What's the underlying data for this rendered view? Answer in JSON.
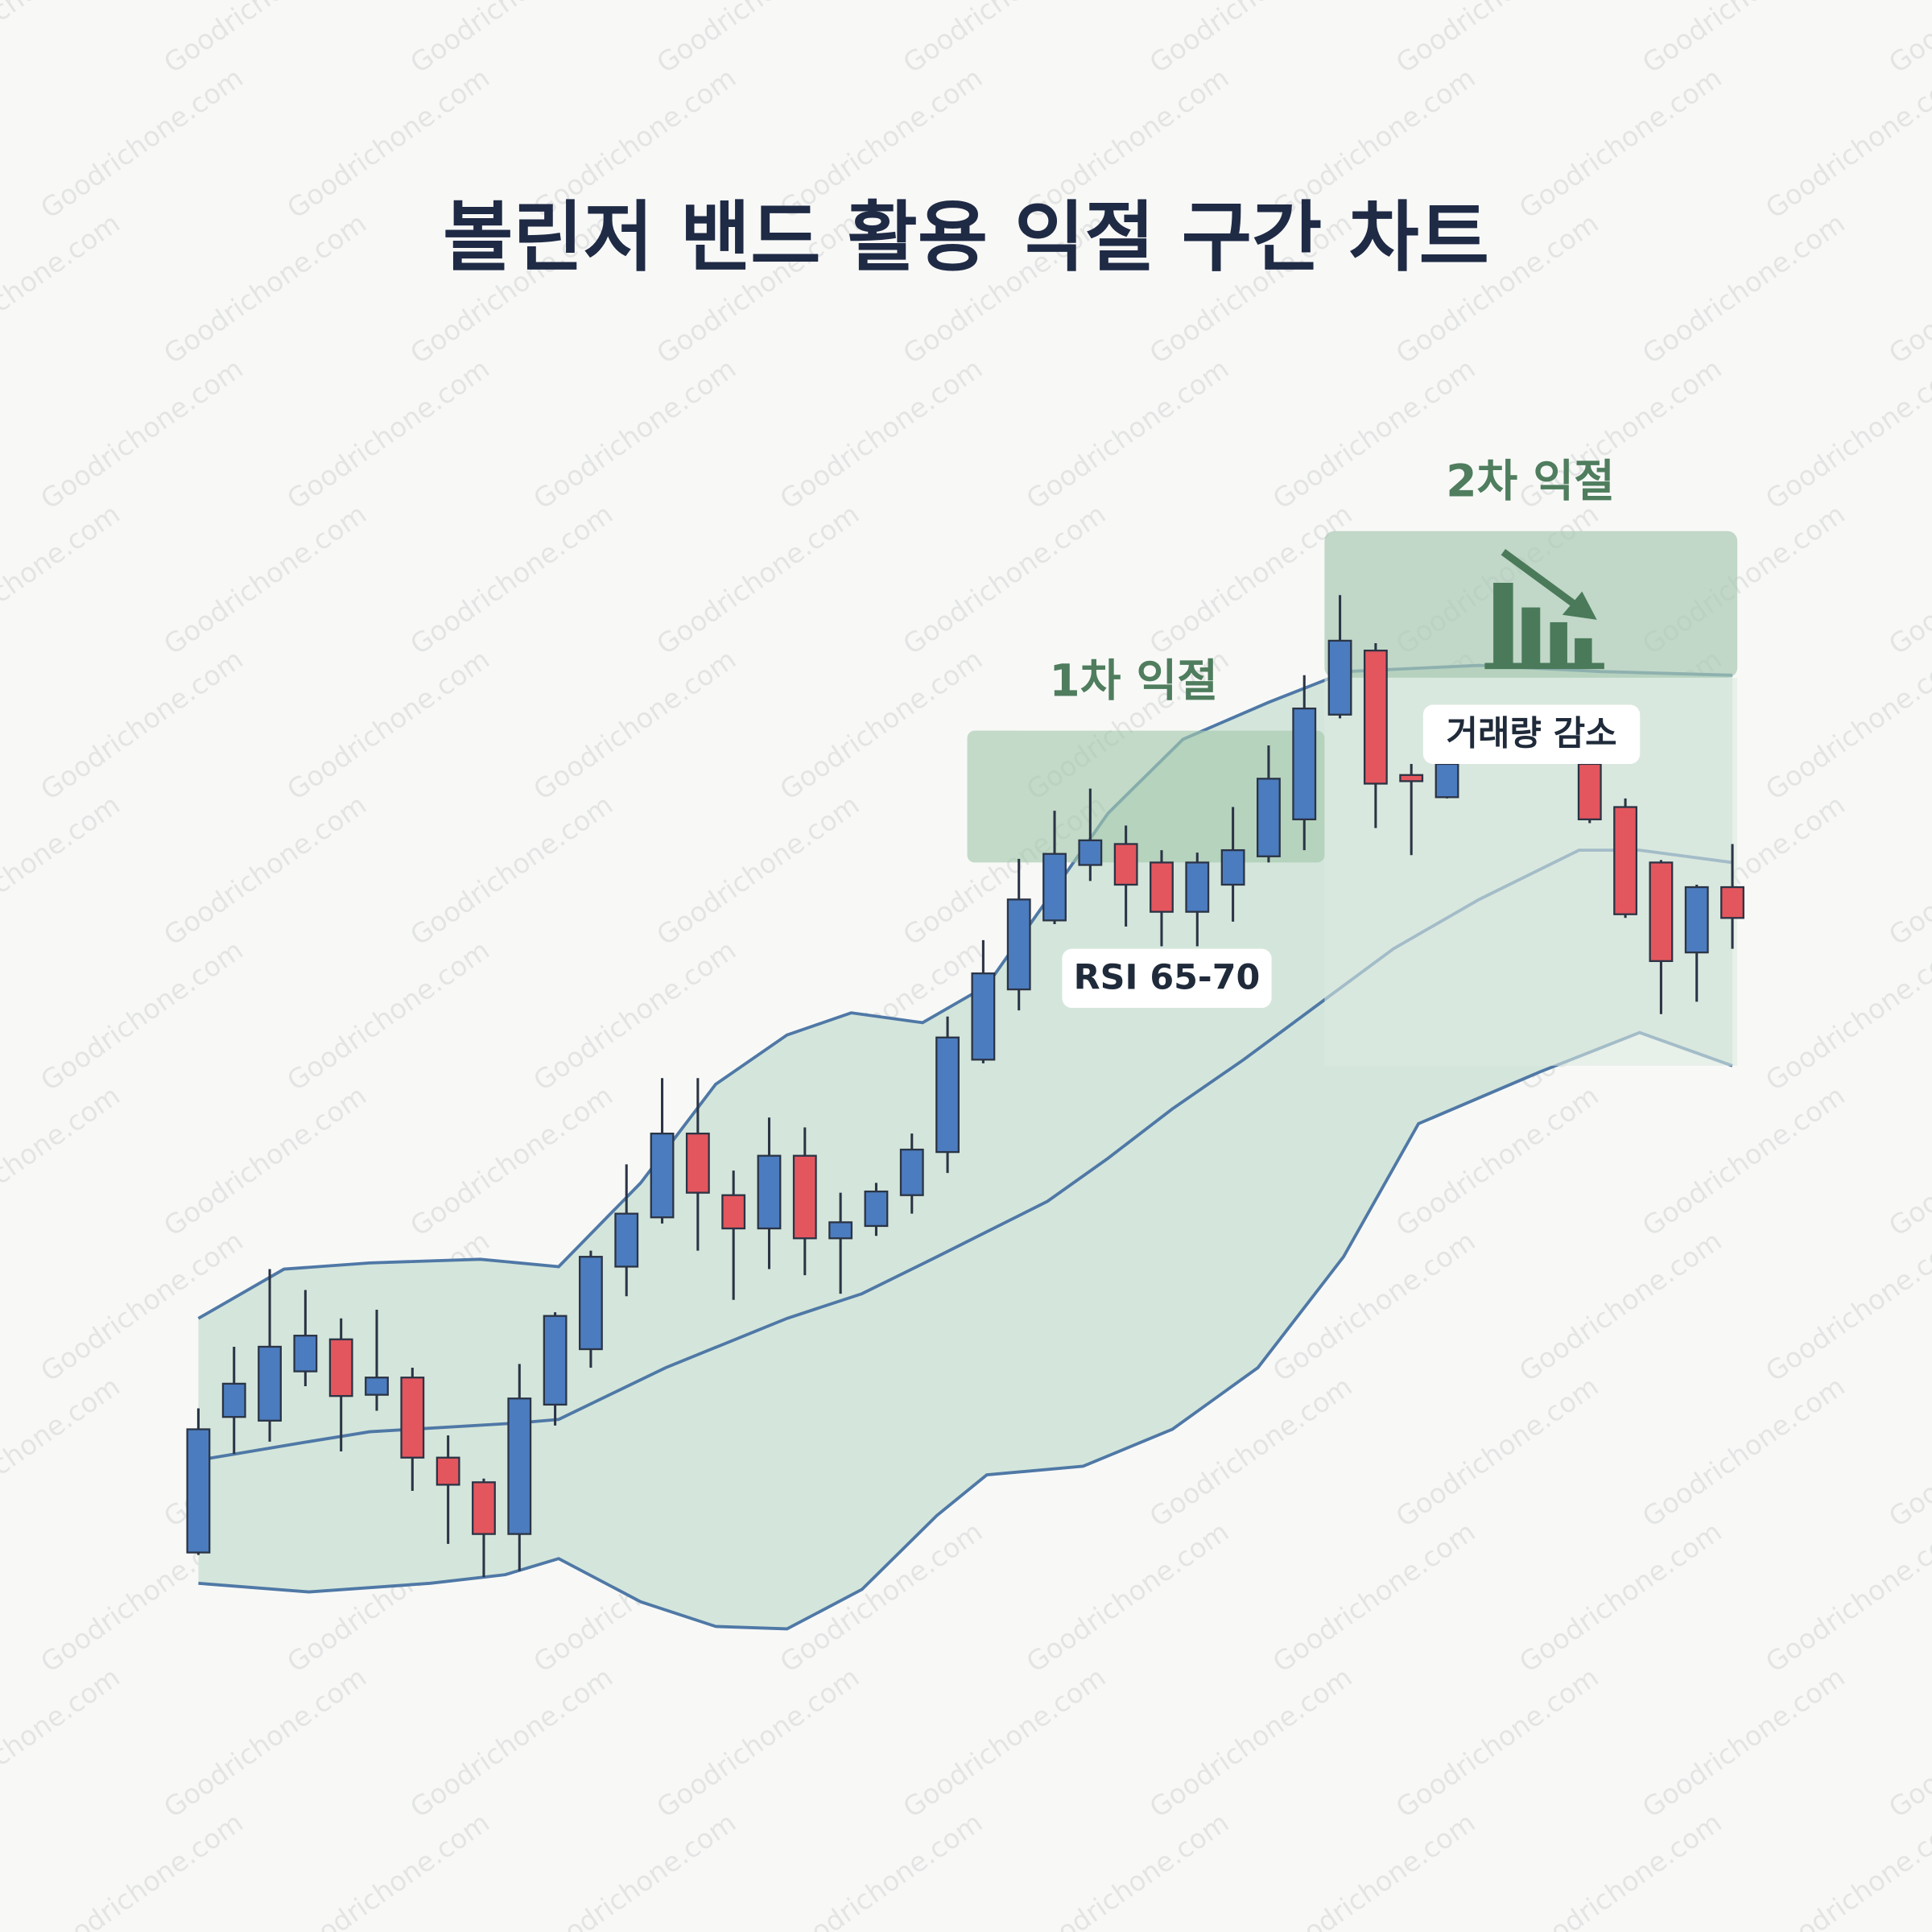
{
  "chart_data": {
    "type": "candlestick",
    "title": "볼린저 밴드 활용 익절 구간 차트",
    "watermark": "Goodrichone.com",
    "annotations": [
      "1차 익절",
      "2차 익절",
      "RSI 65-70",
      "거래량 감소"
    ],
    "x": [
      0,
      1,
      2,
      3,
      4,
      5,
      6,
      7,
      8,
      9,
      10,
      11,
      12,
      13,
      14,
      15,
      16,
      17,
      18,
      19,
      20,
      21,
      22,
      23,
      24,
      25,
      26,
      27,
      28,
      29,
      30,
      31,
      32,
      33,
      34,
      35,
      39,
      40,
      41,
      42,
      43
    ],
    "open": [
      140,
      250,
      247,
      287,
      313,
      268,
      282,
      217,
      197,
      155,
      260,
      305,
      372,
      412,
      480,
      430,
      403,
      462,
      395,
      405,
      430,
      465,
      540,
      597,
      653,
      698,
      715,
      700,
      660,
      682,
      705,
      735,
      820,
      872,
      771,
      753,
      780,
      745,
      700,
      627,
      680
    ],
    "close": [
      240,
      277,
      307,
      316,
      267,
      282,
      217,
      195,
      155,
      265,
      332,
      380,
      415,
      480,
      432,
      403,
      462,
      395,
      408,
      433,
      467,
      558,
      610,
      670,
      707,
      718,
      682,
      660,
      700,
      710,
      768,
      825,
      880,
      764,
      766,
      780,
      735,
      658,
      620,
      680,
      655
    ],
    "high": [
      257,
      307,
      370,
      353,
      330,
      337,
      290,
      235,
      200,
      293,
      335,
      385,
      455,
      525,
      525,
      450,
      493,
      485,
      432,
      440,
      480,
      575,
      637,
      703,
      742,
      760,
      730,
      710,
      708,
      745,
      795,
      852,
      917,
      878,
      780,
      800,
      788,
      752,
      702,
      682,
      715
    ],
    "low": [
      138,
      220,
      230,
      275,
      222,
      255,
      190,
      147,
      120,
      125,
      243,
      290,
      348,
      407,
      385,
      345,
      370,
      365,
      350,
      397,
      415,
      448,
      537,
      580,
      650,
      685,
      648,
      632,
      632,
      652,
      700,
      710,
      817,
      728,
      706,
      752,
      732,
      655,
      577,
      587,
      630
    ],
    "up_color": "#4b7cbf",
    "down_color": "#e4565e",
    "bands": {
      "color": "#4f78a6",
      "fill": "#d4e6db",
      "upper": {
        "x": [
          0,
          2.4,
          4.8,
          7.9,
          10.1,
          12.4,
          14.5,
          16.5,
          18.3,
          20.3,
          22.1,
          23.8,
          25.5,
          27.6,
          30,
          32.2,
          35.9,
          39.3,
          43
        ],
        "values": [
          330,
          370,
          375,
          378,
          372,
          440,
          520,
          560,
          578,
          570,
          600,
          670,
          740,
          800,
          830,
          855,
          860,
          855,
          852
        ]
      },
      "middle": {
        "x": [
          0,
          3.1,
          4.8,
          8.9,
          10.1,
          13.1,
          16.5,
          18.6,
          20.7,
          23.8,
          25.5,
          27.3,
          29.3,
          30.7,
          33.5,
          35.9,
          38.7,
          40.4,
          43
        ],
        "values": [
          215,
          230,
          238,
          245,
          248,
          290,
          330,
          350,
          380,
          425,
          460,
          500,
          540,
          570,
          630,
          670,
          710,
          710,
          700
        ]
      },
      "lower": {
        "x": [
          0,
          3.1,
          6.5,
          8.6,
          10.1,
          12.4,
          14.5,
          16.5,
          18.6,
          20.7,
          22.1,
          24.8,
          27.3,
          29.7,
          32.1,
          34.2,
          37.6,
          40.4,
          43
        ],
        "values": [
          115,
          108,
          115,
          122,
          135,
          100,
          80,
          78,
          110,
          170,
          203,
          210,
          240,
          290,
          380,
          488,
          530,
          562,
          535
        ]
      }
    },
    "xlim": [
      0,
      43
    ],
    "ylim": [
      0,
      1000
    ]
  }
}
